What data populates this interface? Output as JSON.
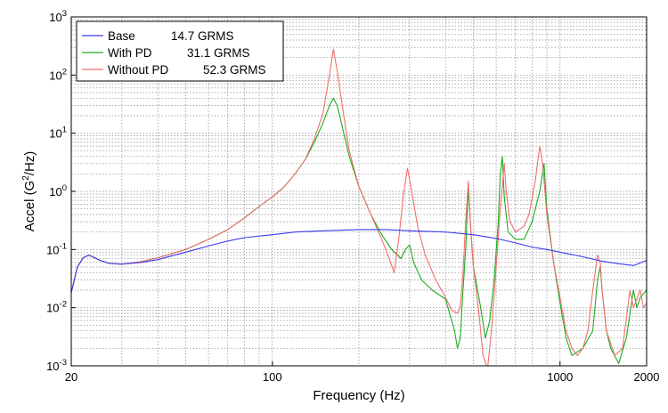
{
  "chart_data": {
    "type": "line",
    "xlabel": "Frequency (Hz)",
    "ylabel_main": "Accel (G",
    "ylabel_sup": "2",
    "ylabel_tail": "/Hz)",
    "x_scale": "log",
    "y_scale": "log",
    "xlim": [
      20,
      2000
    ],
    "ylim": [
      0.001,
      1000
    ],
    "x_ticks": [
      {
        "value": 20,
        "label": "20"
      },
      {
        "value": 100,
        "label": "100"
      },
      {
        "value": 1000,
        "label": "1000"
      },
      {
        "value": 2000,
        "label": "2000"
      }
    ],
    "y_ticks": [
      {
        "value": 0.001,
        "base": "10",
        "exp": "-3"
      },
      {
        "value": 0.01,
        "base": "10",
        "exp": "-2"
      },
      {
        "value": 0.1,
        "base": "10",
        "exp": "-1"
      },
      {
        "value": 1,
        "base": "10",
        "exp": "0"
      },
      {
        "value": 10,
        "base": "10",
        "exp": "1"
      },
      {
        "value": 100,
        "base": "10",
        "exp": "2"
      },
      {
        "value": 1000,
        "base": "10",
        "exp": "3"
      }
    ],
    "grid": true,
    "legend_position": "top-left",
    "series": [
      {
        "name": "Base",
        "rms": "14.7 GRMS",
        "color": "#3a3af0",
        "points": [
          [
            20,
            0.018
          ],
          [
            21,
            0.05
          ],
          [
            22,
            0.072
          ],
          [
            23,
            0.08
          ],
          [
            24,
            0.073
          ],
          [
            25,
            0.066
          ],
          [
            27,
            0.058
          ],
          [
            30,
            0.056
          ],
          [
            35,
            0.06
          ],
          [
            40,
            0.067
          ],
          [
            50,
            0.09
          ],
          [
            60,
            0.115
          ],
          [
            70,
            0.14
          ],
          [
            80,
            0.16
          ],
          [
            100,
            0.18
          ],
          [
            120,
            0.2
          ],
          [
            150,
            0.21
          ],
          [
            200,
            0.22
          ],
          [
            250,
            0.22
          ],
          [
            300,
            0.21
          ],
          [
            400,
            0.2
          ],
          [
            500,
            0.18
          ],
          [
            600,
            0.155
          ],
          [
            700,
            0.13
          ],
          [
            800,
            0.11
          ],
          [
            900,
            0.1
          ],
          [
            1000,
            0.09
          ],
          [
            1200,
            0.075
          ],
          [
            1400,
            0.063
          ],
          [
            1600,
            0.057
          ],
          [
            1800,
            0.053
          ],
          [
            2000,
            0.065
          ]
        ]
      },
      {
        "name": "With PD",
        "rms": "31.1 GRMS",
        "color": "#1faa1f",
        "points": [
          [
            20,
            0.018
          ],
          [
            21,
            0.05
          ],
          [
            22,
            0.072
          ],
          [
            23,
            0.08
          ],
          [
            24,
            0.073
          ],
          [
            25,
            0.066
          ],
          [
            27,
            0.058
          ],
          [
            30,
            0.056
          ],
          [
            35,
            0.062
          ],
          [
            40,
            0.072
          ],
          [
            50,
            0.1
          ],
          [
            60,
            0.15
          ],
          [
            70,
            0.22
          ],
          [
            80,
            0.35
          ],
          [
            90,
            0.55
          ],
          [
            100,
            0.8
          ],
          [
            110,
            1.2
          ],
          [
            120,
            2
          ],
          [
            130,
            3.5
          ],
          [
            140,
            7
          ],
          [
            150,
            15
          ],
          [
            158,
            30
          ],
          [
            163,
            40
          ],
          [
            168,
            30
          ],
          [
            175,
            13
          ],
          [
            185,
            4
          ],
          [
            200,
            1.2
          ],
          [
            220,
            0.4
          ],
          [
            240,
            0.18
          ],
          [
            260,
            0.1
          ],
          [
            280,
            0.07
          ],
          [
            290,
            0.1
          ],
          [
            300,
            0.12
          ],
          [
            310,
            0.06
          ],
          [
            330,
            0.03
          ],
          [
            360,
            0.02
          ],
          [
            400,
            0.014
          ],
          [
            430,
            0.004
          ],
          [
            440,
            0.002
          ],
          [
            450,
            0.003
          ],
          [
            460,
            0.02
          ],
          [
            470,
            0.1
          ],
          [
            480,
            1.2
          ],
          [
            490,
            0.2
          ],
          [
            500,
            0.05
          ],
          [
            530,
            0.01
          ],
          [
            550,
            0.003
          ],
          [
            570,
            0.006
          ],
          [
            590,
            0.03
          ],
          [
            610,
            0.3
          ],
          [
            620,
            2
          ],
          [
            630,
            4
          ],
          [
            640,
            0.8
          ],
          [
            660,
            0.2
          ],
          [
            700,
            0.15
          ],
          [
            750,
            0.15
          ],
          [
            800,
            0.3
          ],
          [
            850,
            1
          ],
          [
            880,
            3
          ],
          [
            900,
            0.5
          ],
          [
            950,
            0.06
          ],
          [
            1000,
            0.012
          ],
          [
            1050,
            0.003
          ],
          [
            1100,
            0.0015
          ],
          [
            1200,
            0.002
          ],
          [
            1300,
            0.004
          ],
          [
            1350,
            0.03
          ],
          [
            1380,
            0.05
          ],
          [
            1400,
            0.02
          ],
          [
            1450,
            0.004
          ],
          [
            1500,
            0.002
          ],
          [
            1600,
            0.0011
          ],
          [
            1700,
            0.003
          ],
          [
            1800,
            0.02
          ],
          [
            1850,
            0.01
          ],
          [
            1900,
            0.015
          ],
          [
            2000,
            0.02
          ]
        ]
      },
      {
        "name": "Without PD",
        "rms": "52.3 GRMS",
        "color": "#f07070",
        "points": [
          [
            20,
            0.018
          ],
          [
            21,
            0.05
          ],
          [
            22,
            0.072
          ],
          [
            23,
            0.08
          ],
          [
            24,
            0.073
          ],
          [
            25,
            0.066
          ],
          [
            27,
            0.058
          ],
          [
            30,
            0.056
          ],
          [
            35,
            0.062
          ],
          [
            40,
            0.072
          ],
          [
            50,
            0.1
          ],
          [
            60,
            0.15
          ],
          [
            70,
            0.22
          ],
          [
            80,
            0.35
          ],
          [
            90,
            0.55
          ],
          [
            100,
            0.8
          ],
          [
            110,
            1.2
          ],
          [
            120,
            2
          ],
          [
            130,
            3.5
          ],
          [
            140,
            8
          ],
          [
            150,
            22
          ],
          [
            158,
            100
          ],
          [
            163,
            280
          ],
          [
            168,
            120
          ],
          [
            175,
            30
          ],
          [
            185,
            5
          ],
          [
            200,
            1.2
          ],
          [
            220,
            0.4
          ],
          [
            240,
            0.15
          ],
          [
            255,
            0.07
          ],
          [
            265,
            0.04
          ],
          [
            275,
            0.15
          ],
          [
            285,
            0.8
          ],
          [
            295,
            2.5
          ],
          [
            305,
            1
          ],
          [
            320,
            0.25
          ],
          [
            340,
            0.08
          ],
          [
            370,
            0.03
          ],
          [
            400,
            0.015
          ],
          [
            420,
            0.009
          ],
          [
            440,
            0.008
          ],
          [
            450,
            0.01
          ],
          [
            460,
            0.04
          ],
          [
            470,
            0.3
          ],
          [
            480,
            1.5
          ],
          [
            490,
            0.2
          ],
          [
            500,
            0.05
          ],
          [
            520,
            0.01
          ],
          [
            540,
            0.0015
          ],
          [
            560,
            0.0009
          ],
          [
            580,
            0.005
          ],
          [
            600,
            0.05
          ],
          [
            620,
            0.5
          ],
          [
            640,
            3
          ],
          [
            650,
            1
          ],
          [
            670,
            0.3
          ],
          [
            700,
            0.2
          ],
          [
            750,
            0.25
          ],
          [
            780,
            0.4
          ],
          [
            820,
            1.5
          ],
          [
            850,
            6
          ],
          [
            870,
            3
          ],
          [
            900,
            0.4
          ],
          [
            950,
            0.06
          ],
          [
            1000,
            0.015
          ],
          [
            1050,
            0.004
          ],
          [
            1100,
            0.002
          ],
          [
            1150,
            0.0015
          ],
          [
            1200,
            0.002
          ],
          [
            1250,
            0.004
          ],
          [
            1300,
            0.02
          ],
          [
            1350,
            0.08
          ],
          [
            1380,
            0.06
          ],
          [
            1400,
            0.02
          ],
          [
            1450,
            0.004
          ],
          [
            1550,
            0.0015
          ],
          [
            1650,
            0.002
          ],
          [
            1750,
            0.02
          ],
          [
            1800,
            0.01
          ],
          [
            1900,
            0.02
          ],
          [
            1950,
            0.01
          ],
          [
            2000,
            0.012
          ]
        ]
      }
    ]
  }
}
